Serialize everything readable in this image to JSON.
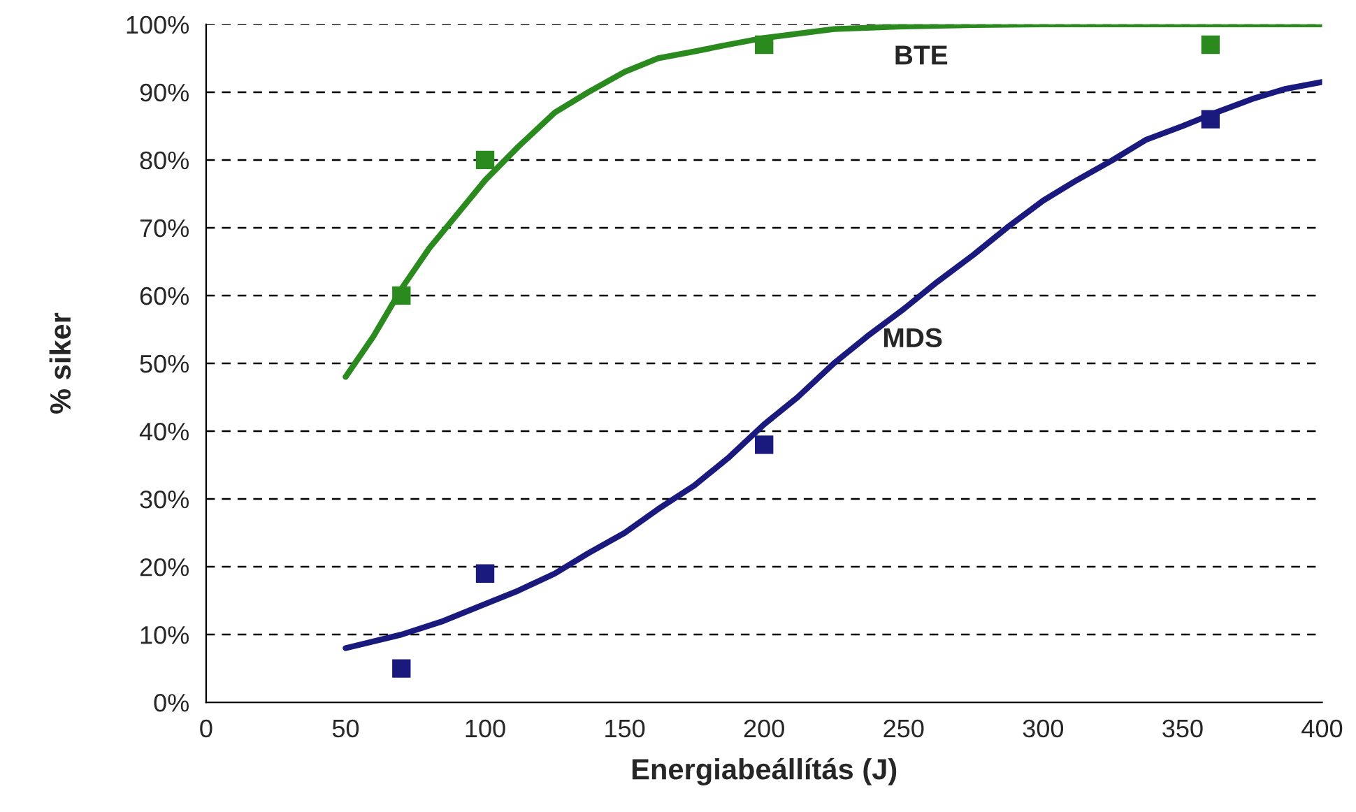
{
  "chart_data": {
    "type": "scatter",
    "xlabel": "Energiabeállítás (J)",
    "ylabel": "% siker",
    "xlim": [
      0,
      400
    ],
    "xticks": [
      0,
      50,
      100,
      150,
      200,
      250,
      300,
      350,
      400
    ],
    "ylim": [
      0,
      100
    ],
    "yticks": [
      {
        "value": 0,
        "label": "0%"
      },
      {
        "value": 10,
        "label": "10%"
      },
      {
        "value": 20,
        "label": "20%"
      },
      {
        "value": 30,
        "label": "30%"
      },
      {
        "value": 40,
        "label": "40%"
      },
      {
        "value": 50,
        "label": "50%"
      },
      {
        "value": 60,
        "label": "60%"
      },
      {
        "value": 70,
        "label": "70%"
      },
      {
        "value": 80,
        "label": "80%"
      },
      {
        "value": 90,
        "label": "90%"
      },
      {
        "value": 100,
        "label": "100%"
      }
    ],
    "grid": "y",
    "legend": false,
    "series": [
      {
        "type": "line",
        "name": "BTE",
        "color": "#2a8a1e",
        "x": [
          50,
          60,
          70,
          80,
          90,
          100,
          112,
          125,
          137,
          150,
          162,
          175,
          187,
          200,
          225,
          250,
          275,
          300,
          350,
          400
        ],
        "values": [
          48,
          54,
          61,
          67,
          72,
          77,
          82,
          87,
          90,
          93,
          95,
          96,
          97,
          98,
          99.3,
          99.7,
          99.9,
          100,
          100,
          100
        ]
      },
      {
        "type": "line",
        "name": "MDS",
        "color": "#1a1a7e",
        "x": [
          50,
          70,
          85,
          100,
          112,
          125,
          137,
          150,
          162,
          175,
          187,
          200,
          212,
          225,
          237,
          250,
          262,
          275,
          287,
          300,
          312,
          325,
          337,
          350,
          362,
          375,
          387,
          400
        ],
        "values": [
          8,
          10,
          12,
          14.5,
          16.5,
          19,
          22,
          25,
          28.5,
          32,
          36,
          41,
          45,
          50,
          54,
          58,
          62,
          66,
          70,
          74,
          77,
          80,
          83,
          85,
          87,
          89,
          90.5,
          91.5
        ]
      },
      {
        "marker": "square",
        "color": "#2a8a1e",
        "x": [
          70,
          100,
          200,
          360
        ],
        "values": [
          60,
          80,
          97,
          97
        ]
      },
      {
        "marker": "square",
        "color": "#1a1a7e",
        "x": [
          70,
          100,
          200,
          360
        ],
        "values": [
          5,
          19,
          38,
          86
        ]
      }
    ]
  }
}
